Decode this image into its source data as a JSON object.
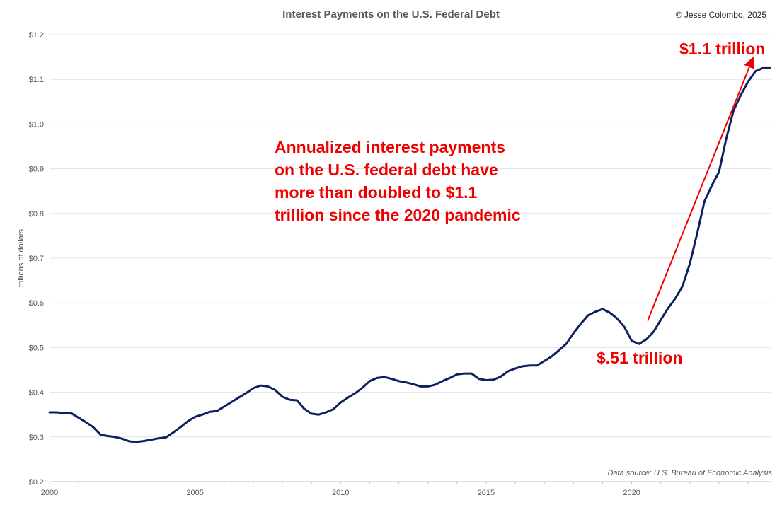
{
  "chart_data": {
    "type": "line",
    "title": "Interest Payments on the U.S. Federal Debt",
    "ylabel": "trillions of dollars",
    "xlabel": "",
    "xlim": [
      2000,
      2024.8
    ],
    "ylim": [
      0.2,
      1.2
    ],
    "y_ticks": [
      "$0.2",
      "$0.3",
      "$0.4",
      "$0.5",
      "$0.6",
      "$0.7",
      "$0.8",
      "$0.9",
      "$1.0",
      "$1.1",
      "$1.2"
    ],
    "x_ticks": [
      "2000",
      "2005",
      "2010",
      "2015",
      "2020"
    ],
    "grid": "horizontal",
    "legend": "none",
    "line_color": "#0f2060",
    "series": [
      {
        "x": [
          2000.0,
          2000.25,
          2000.5,
          2000.75,
          2001.0,
          2001.25,
          2001.5,
          2001.75,
          2002.0,
          2002.25,
          2002.5,
          2002.75,
          2003.0,
          2003.25,
          2003.5,
          2003.75,
          2004.0,
          2004.25,
          2004.5,
          2004.75,
          2005.0,
          2005.25,
          2005.5,
          2005.75,
          2006.0,
          2006.25,
          2006.5,
          2006.75,
          2007.0,
          2007.25,
          2007.5,
          2007.75,
          2008.0,
          2008.25,
          2008.5,
          2008.75,
          2009.0,
          2009.25,
          2009.5,
          2009.75,
          2010.0,
          2010.25,
          2010.5,
          2010.75,
          2011.0,
          2011.25,
          2011.5,
          2011.75,
          2012.0,
          2012.25,
          2012.5,
          2012.75,
          2013.0,
          2013.25,
          2013.5,
          2013.75,
          2014.0,
          2014.25,
          2014.5,
          2014.75,
          2015.0,
          2015.25,
          2015.5,
          2015.75,
          2016.0,
          2016.25,
          2016.5,
          2016.75,
          2017.0,
          2017.25,
          2017.5,
          2017.75,
          2018.0,
          2018.25,
          2018.5,
          2018.75,
          2019.0,
          2019.25,
          2019.5,
          2019.75,
          2020.0,
          2020.25,
          2020.5,
          2020.75,
          2021.0,
          2021.25,
          2021.5,
          2021.75,
          2022.0,
          2022.25,
          2022.5,
          2022.75,
          2023.0,
          2023.25,
          2023.5,
          2023.75,
          2024.0,
          2024.25,
          2024.5,
          2024.75
        ],
        "values": [
          0.355,
          0.355,
          0.353,
          0.353,
          0.343,
          0.333,
          0.322,
          0.305,
          0.302,
          0.3,
          0.296,
          0.29,
          0.289,
          0.291,
          0.294,
          0.297,
          0.299,
          0.31,
          0.322,
          0.335,
          0.345,
          0.35,
          0.356,
          0.358,
          0.368,
          0.378,
          0.388,
          0.398,
          0.409,
          0.415,
          0.413,
          0.405,
          0.39,
          0.383,
          0.382,
          0.363,
          0.352,
          0.35,
          0.355,
          0.362,
          0.377,
          0.388,
          0.398,
          0.41,
          0.425,
          0.432,
          0.434,
          0.43,
          0.425,
          0.422,
          0.418,
          0.413,
          0.413,
          0.417,
          0.425,
          0.432,
          0.44,
          0.442,
          0.442,
          0.43,
          0.427,
          0.428,
          0.435,
          0.447,
          0.453,
          0.458,
          0.46,
          0.46,
          0.47,
          0.48,
          0.494,
          0.508,
          0.532,
          0.553,
          0.572,
          0.58,
          0.586,
          0.578,
          0.565,
          0.546,
          0.515,
          0.508,
          0.518,
          0.535,
          0.562,
          0.588,
          0.61,
          0.638,
          0.688,
          0.755,
          0.827,
          0.862,
          0.893,
          0.968,
          1.03,
          1.065,
          1.095,
          1.118,
          1.125,
          1.125
        ]
      }
    ],
    "annotations": {
      "main_text": "Annualized interest payments on the U.S. federal debt have more than doubled to $1.1 trillion since the 2020 pandemic",
      "high_label": "$1.1 trillion",
      "low_label": "$.51 trillion",
      "arrow": {
        "from": [
          2020.55,
          0.56
        ],
        "to": [
          2024.15,
          1.145
        ]
      },
      "color": "#ee0000"
    },
    "copyright": "© Jesse Colombo, 2025",
    "source": "Data source: U.S. Bureau of Economic Analysis"
  }
}
